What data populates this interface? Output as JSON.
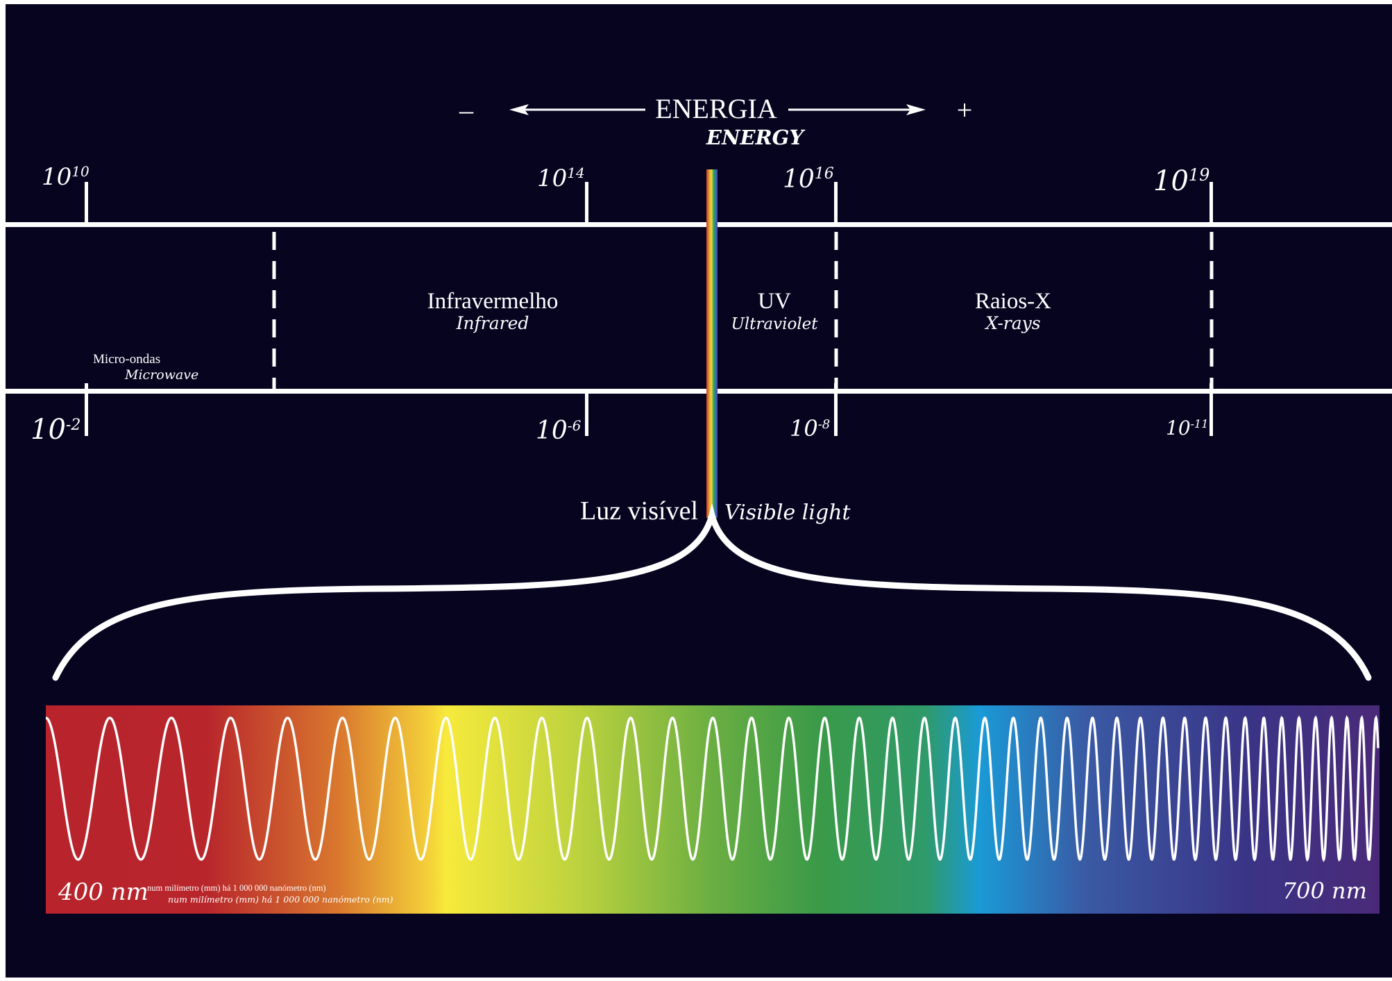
{
  "energy": {
    "label": "ENERGIA",
    "label_en": "ENERGY",
    "minus": "–",
    "plus": "+"
  },
  "frequency_ticks": [
    {
      "base": "10",
      "exp": "10"
    },
    {
      "base": "10",
      "exp": "14"
    },
    {
      "base": "10",
      "exp": "16"
    },
    {
      "base": "10",
      "exp": "19"
    }
  ],
  "wavelength_ticks": [
    {
      "base": "10",
      "exp": "-2"
    },
    {
      "base": "10",
      "exp": "-6"
    },
    {
      "base": "10",
      "exp": "-8"
    },
    {
      "base": "10",
      "exp": "-11"
    }
  ],
  "bands": {
    "microwave": {
      "pt": "Micro-ondas",
      "en": "Microwave"
    },
    "infrared": {
      "pt": "Infravermelho",
      "en": "Infrared"
    },
    "uv": {
      "pt": "UV",
      "en": "Ultraviolet"
    },
    "xray": {
      "pt": "Raios-X",
      "en": "X-rays"
    }
  },
  "visible": {
    "pt": "Luz visível",
    "en": "Visible light"
  },
  "spectrum": {
    "start_label": "400 nm",
    "end_label": "700 nm",
    "note_pt": "num milímetro (mm) há 1 000 000 nanómetro (nm)",
    "note_en": "num milímetro (mm) há 1 000 000 nanómetro (nm)"
  },
  "colors": {
    "background": "#070420",
    "line": "#ffffff",
    "spectrum_red": "#b8232c",
    "spectrum_orange": "#d9782e",
    "spectrum_yellow": "#f5e63c",
    "spectrum_green": "#3a9a48",
    "spectrum_blue": "#1a9ad6",
    "spectrum_violet": "#4a2a78"
  }
}
